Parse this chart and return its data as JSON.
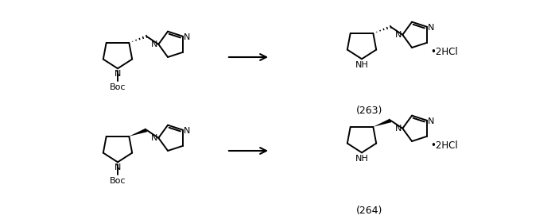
{
  "background_color": "#ffffff",
  "line_color": "#000000",
  "label_263": "(263)",
  "label_264": "(264)",
  "label_boc1": "Boc",
  "label_boc2": "Boc",
  "label_2hcl": "•2HCl",
  "figsize": [
    6.98,
    2.81
  ],
  "dpi": 100
}
